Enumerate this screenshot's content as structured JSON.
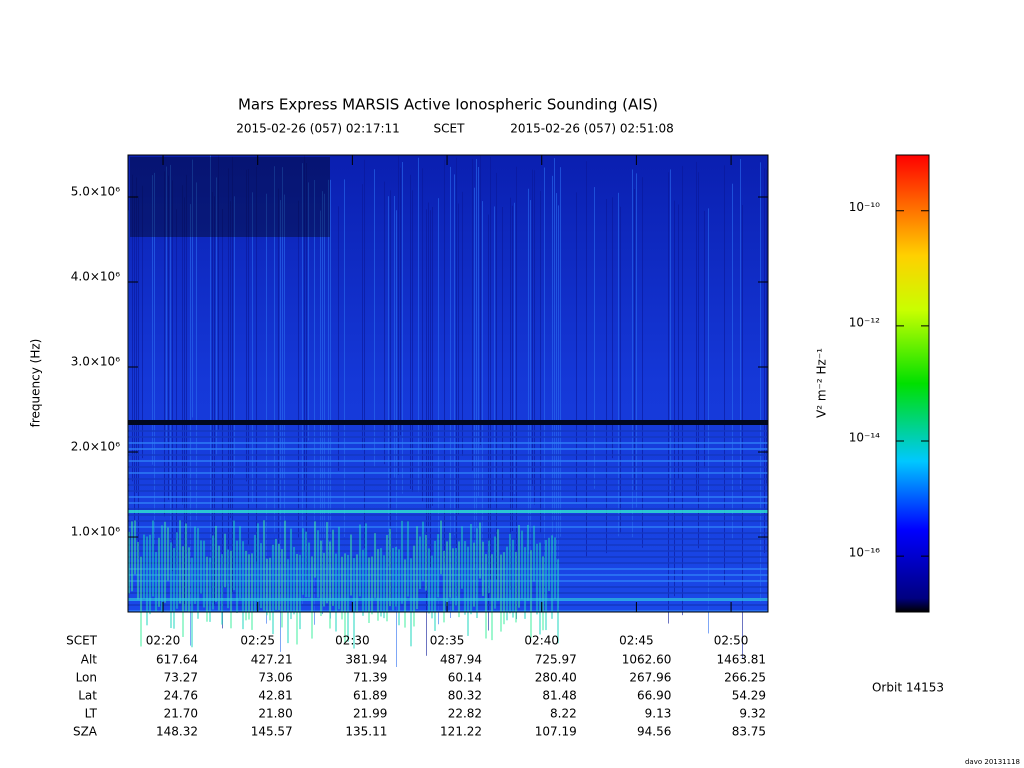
{
  "chart_data": {
    "type": "spectrogram",
    "title": "Mars Express MARSIS Active Ionospheric Sounding (AIS)",
    "start_time": "2015-02-26 (057) 02:17:11",
    "time_system": "SCET",
    "end_time": "2015-02-26 (057) 02:51:08",
    "ylabel": "frequency (Hz)",
    "xlim": [
      "02:18:09",
      "02:51:57"
    ],
    "xticks": [
      "02:20",
      "02:25",
      "02:30",
      "02:35",
      "02:40",
      "02:45",
      "02:50"
    ],
    "ylim": [
      118000,
      5494000
    ],
    "yticks": [
      {
        "value": 1000000,
        "label": "1.0×10⁶"
      },
      {
        "value": 2000000,
        "label": "2.0×10⁶"
      },
      {
        "value": 3000000,
        "label": "3.0×10⁶"
      },
      {
        "value": 4000000,
        "label": "4.0×10⁶"
      },
      {
        "value": 5000000,
        "label": "5.0×10⁶"
      }
    ],
    "colorbar": {
      "label": "V² m⁻² Hz⁻¹",
      "log_scale": true,
      "lim": [
        1.07e-17,
        9.3e-10
      ],
      "ticks": [
        {
          "value": 1e-10,
          "label": "10⁻¹⁰"
        },
        {
          "value": 1e-12,
          "label": "10⁻¹²"
        },
        {
          "value": 1e-14,
          "label": "10⁻¹⁴"
        },
        {
          "value": 1e-16,
          "label": "10⁻¹⁶"
        }
      ]
    },
    "ephemeris": {
      "time_label": "SCET",
      "rows": [
        {
          "label": "Alt",
          "values": [
            "617.64",
            "427.21",
            "381.94",
            "487.94",
            "725.97",
            "1062.60",
            "1463.81"
          ]
        },
        {
          "label": "Lon",
          "values": [
            "73.27",
            "73.06",
            "71.39",
            "60.14",
            "280.40",
            "267.96",
            "266.25"
          ]
        },
        {
          "label": "Lat",
          "values": [
            "24.76",
            "42.81",
            "61.89",
            "80.32",
            "81.48",
            "66.90",
            "54.29"
          ]
        },
        {
          "label": "LT",
          "values": [
            "21.70",
            "21.80",
            "21.99",
            "22.82",
            "8.22",
            "9.13",
            "9.32"
          ]
        },
        {
          "label": "SZA",
          "values": [
            "148.32",
            "145.57",
            "135.11",
            "121.22",
            "107.19",
            "94.56",
            "83.75"
          ]
        }
      ]
    },
    "orbit": "Orbit 14153",
    "credit": "davo 20131118"
  }
}
